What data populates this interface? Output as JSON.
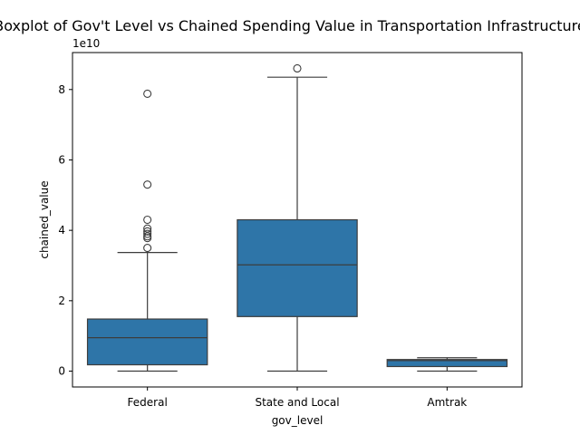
{
  "chart_data": {
    "type": "boxplot",
    "title": "Boxplot of Gov't Level vs Chained Spending Value in Transportation Infrastructure",
    "xlabel": "gov_level",
    "ylabel": "chained_value",
    "y_offset_label": "1e10",
    "y_scale": 10000000000,
    "ylim": [
      -0.45,
      9.05
    ],
    "y_ticks": [
      0,
      2,
      4,
      6,
      8
    ],
    "y_tick_labels": [
      "0",
      "2",
      "4",
      "6",
      "8"
    ],
    "grid": false,
    "box_color": "#2e75a8",
    "line_color": "#3d3d3d",
    "categories": [
      "Federal",
      "State and Local",
      "Amtrak"
    ],
    "boxes": [
      {
        "category": "Federal",
        "whisker_low": 0.0,
        "q1": 0.18,
        "median": 0.95,
        "q3": 1.48,
        "whisker_high": 3.37,
        "outliers": [
          3.5,
          3.78,
          3.83,
          3.9,
          3.97,
          4.05,
          4.3,
          5.3,
          7.88
        ]
      },
      {
        "category": "State and Local",
        "whisker_low": 0.0,
        "q1": 1.55,
        "median": 3.02,
        "q3": 4.3,
        "whisker_high": 8.35,
        "outliers": [
          8.6
        ]
      },
      {
        "category": "Amtrak",
        "whisker_low": 0.0,
        "q1": 0.13,
        "median": 0.3,
        "q3": 0.33,
        "whisker_high": 0.38,
        "outliers": []
      }
    ]
  }
}
